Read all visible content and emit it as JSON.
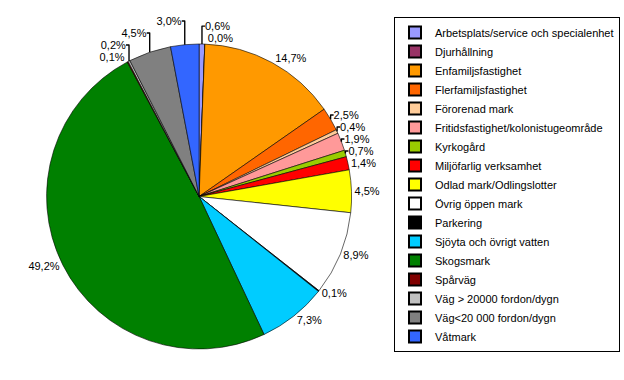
{
  "chart_data": {
    "type": "pie",
    "categories": [
      "Arbetsplats/service och specialenhet",
      "Djurhållning",
      "Enfamiljsfastighet",
      "Flerfamiljsfastighet",
      "Förorenad mark",
      "Fritidsfastighet/kolonistugeområde",
      "Kyrkogård",
      "Miljöfarlig verksamhet",
      "Odlad mark/Odlingslotter",
      "Övrig öppen mark",
      "Parkering",
      "Sjöyta och övrigt vatten",
      "Skogsmark",
      "Spårväg",
      "Väg > 20000 fordon/dygn",
      "Väg<20 000 fordon/dygn",
      "Våtmark"
    ],
    "values": [
      0.6,
      0.0,
      14.7,
      2.5,
      0.4,
      1.9,
      0.7,
      1.4,
      4.5,
      8.9,
      0.1,
      7.3,
      49.2,
      0.1,
      0.2,
      4.5,
      3.0
    ],
    "value_labels": [
      "0,6%",
      "0,0%",
      "14,7%",
      "2,5%",
      "0,4%",
      "1,9%",
      "0,7%",
      "1,4%",
      "4,5%",
      "8,9%",
      "0,1%",
      "7,3%",
      "49,2%",
      "0,1%",
      "0,2%",
      "4,5%",
      "3,0%"
    ],
    "colors": [
      "#9999FF",
      "#993366",
      "#FF9900",
      "#FF6600",
      "#FFCC99",
      "#FF9999",
      "#99CC00",
      "#FF0000",
      "#FFFF00",
      "#FFFFFF",
      "#000000",
      "#00CCFF",
      "#008000",
      "#800000",
      "#C0C0C0",
      "#808080",
      "#3366FF"
    ],
    "data_labels": true,
    "legend": "right"
  }
}
